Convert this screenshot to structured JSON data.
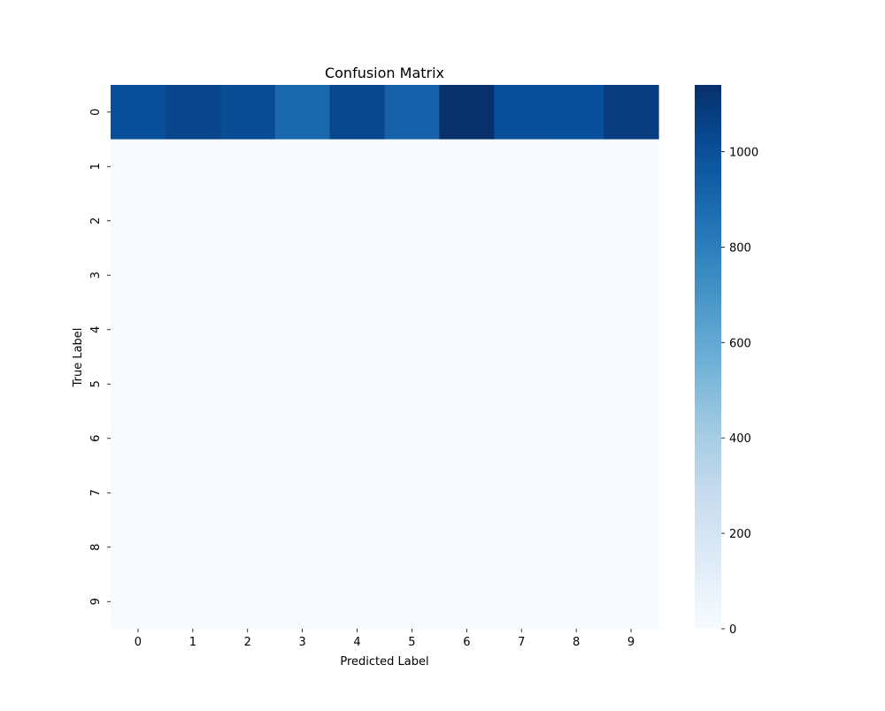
{
  "chart_data": {
    "type": "heatmap",
    "title": "Confusion Matrix",
    "xlabel": "Predicted Label",
    "ylabel": "True Label",
    "x_categories": [
      "0",
      "1",
      "2",
      "3",
      "4",
      "5",
      "6",
      "7",
      "8",
      "9"
    ],
    "y_categories": [
      "0",
      "1",
      "2",
      "3",
      "4",
      "5",
      "6",
      "7",
      "8",
      "9"
    ],
    "matrix": [
      [
        1010,
        1050,
        1020,
        900,
        1040,
        920,
        1140,
        1010,
        1000,
        1080
      ],
      [
        0,
        0,
        0,
        0,
        0,
        0,
        0,
        0,
        0,
        0
      ],
      [
        0,
        0,
        0,
        0,
        0,
        0,
        0,
        0,
        0,
        0
      ],
      [
        0,
        0,
        0,
        0,
        0,
        0,
        0,
        0,
        0,
        0
      ],
      [
        0,
        0,
        0,
        0,
        0,
        0,
        0,
        0,
        0,
        0
      ],
      [
        0,
        0,
        0,
        0,
        0,
        0,
        0,
        0,
        0,
        0
      ],
      [
        0,
        0,
        0,
        0,
        0,
        0,
        0,
        0,
        0,
        0
      ],
      [
        0,
        0,
        0,
        0,
        0,
        0,
        0,
        0,
        0,
        0
      ],
      [
        0,
        0,
        0,
        0,
        0,
        0,
        0,
        0,
        0,
        0
      ],
      [
        0,
        0,
        0,
        0,
        0,
        0,
        0,
        0,
        0,
        0
      ]
    ],
    "colormap": "Blues",
    "colorbar": {
      "min": 0,
      "max": 1140,
      "ticks": [
        0,
        200,
        400,
        600,
        800,
        1000
      ]
    }
  }
}
